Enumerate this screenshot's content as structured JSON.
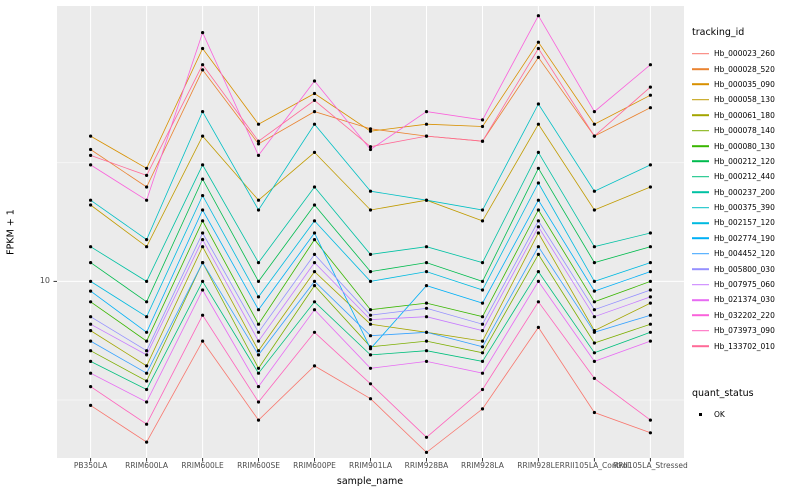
{
  "chart_data": {
    "type": "line",
    "title": "",
    "xlabel": "sample_name",
    "ylabel": "FPKM + 1",
    "y_scale": "log10",
    "ylim": [
      1.8,
      145
    ],
    "y_tick": {
      "value": 10,
      "label": "10"
    },
    "y_major_gridlines": [
      10
    ],
    "y_minor_gridlines": [
      3.162,
      31.62
    ],
    "grid_on": true,
    "legend_position": "right",
    "panel_bg": "#EBEBEB",
    "grid_color": "#FFFFFF",
    "point_color": "#000000",
    "point_shape": "circle",
    "categories": [
      "PB350LA",
      "RRIM600LA",
      "RRIM600LE",
      "RRIM600SE",
      "RRIM600PE",
      "RRIM901LA",
      "RRIM928BA",
      "RRIM928LA",
      "RRIM928LE",
      "RRII105LA_Control",
      "RRII105LA_Stressed"
    ],
    "series": [
      {
        "name": "Hb_000023_260",
        "color": "#F8766D",
        "values": [
          3.0,
          2.1,
          5.6,
          2.6,
          4.4,
          3.2,
          1.9,
          2.9,
          6.4,
          2.8,
          2.3
        ]
      },
      {
        "name": "Hb_000028_520",
        "color": "#EA8331",
        "values": [
          36,
          25,
          78,
          38,
          52,
          44,
          41,
          39,
          88,
          41,
          54
        ]
      },
      {
        "name": "Hb_000035_090",
        "color": "#D89000",
        "values": [
          41,
          30,
          96,
          46,
          62,
          43,
          46,
          45,
          102,
          46,
          61
        ]
      },
      {
        "name": "Hb_000058_130",
        "color": "#C09B00",
        "values": [
          21,
          14,
          41,
          22,
          35,
          20,
          22,
          18,
          46,
          20,
          25
        ]
      },
      {
        "name": "Hb_000061_180",
        "color": "#A3A500",
        "values": [
          6.2,
          4.4,
          14,
          5.1,
          11,
          6.6,
          6.1,
          5.6,
          16,
          6.2,
          8.1
        ]
      },
      {
        "name": "Hb_000078_140",
        "color": "#7CAE00",
        "values": [
          5.1,
          3.8,
          12,
          4.3,
          9.6,
          5.3,
          5.6,
          5.0,
          13,
          5.5,
          6.6
        ]
      },
      {
        "name": "Hb_000080_130",
        "color": "#39B600",
        "values": [
          8.2,
          5.6,
          18,
          6.6,
          15,
          7.6,
          8.1,
          7.1,
          20,
          8.2,
          10
        ]
      },
      {
        "name": "Hb_000212_120",
        "color": "#00BB4E",
        "values": [
          12,
          8.2,
          27,
          10,
          21,
          11,
          12,
          10,
          30,
          12,
          14
        ]
      },
      {
        "name": "Hb_000212_440",
        "color": "#00BF7D",
        "values": [
          4.6,
          3.5,
          10,
          4.1,
          8.2,
          4.9,
          5.1,
          4.6,
          11,
          5.0,
          6.1
        ]
      },
      {
        "name": "Hb_000237_200",
        "color": "#00C1A3",
        "values": [
          14,
          10,
          31,
          12,
          25,
          13,
          14,
          12,
          35,
          14,
          16
        ]
      },
      {
        "name": "Hb_000375_390",
        "color": "#00BFC4",
        "values": [
          22,
          15,
          52,
          20,
          46,
          24,
          22,
          20,
          56,
          24,
          31
        ]
      },
      {
        "name": "Hb_002157_120",
        "color": "#00BAE0",
        "values": [
          10,
          7.1,
          23,
          8.6,
          18,
          10,
          11,
          9.2,
          26,
          10,
          12
        ]
      },
      {
        "name": "Hb_002774_190",
        "color": "#00B0F6",
        "values": [
          9.1,
          6.1,
          20,
          7.6,
          16,
          5.2,
          9.6,
          8.1,
          22,
          9.1,
          11
        ]
      },
      {
        "name": "Hb_004452_120",
        "color": "#35A2FF",
        "values": [
          5.6,
          4.1,
          12,
          4.9,
          10,
          5.9,
          6.1,
          5.3,
          14,
          6.1,
          7.2
        ]
      },
      {
        "name": "Hb_005800_030",
        "color": "#9590FF",
        "values": [
          7.1,
          5.1,
          16,
          6.1,
          13,
          7.2,
          7.7,
          6.6,
          18,
          7.6,
          9.2
        ]
      },
      {
        "name": "Hb_007975_060",
        "color": "#C77CFF",
        "values": [
          6.6,
          4.9,
          15,
          5.6,
          12,
          6.9,
          7.1,
          6.2,
          17,
          7.1,
          8.6
        ]
      },
      {
        "name": "Hb_021374_030",
        "color": "#E76BF3",
        "values": [
          4.1,
          3.1,
          9.2,
          3.6,
          7.6,
          4.3,
          4.6,
          4.1,
          10,
          4.6,
          5.6
        ]
      },
      {
        "name": "Hb_032202_220",
        "color": "#FA62DB",
        "values": [
          31,
          22,
          112,
          34,
          70,
          36,
          52,
          48,
          132,
          52,
          82
        ]
      },
      {
        "name": "Hb_073973_090",
        "color": "#FF62BC",
        "values": [
          3.6,
          2.5,
          7.2,
          3.1,
          6.1,
          3.7,
          2.2,
          3.5,
          8.2,
          3.9,
          2.6
        ]
      },
      {
        "name": "Hb_133702_010",
        "color": "#FF6A98",
        "values": [
          34,
          28,
          82,
          39,
          58,
          37,
          41,
          39,
          96,
          41,
          66
        ]
      }
    ]
  },
  "legend": {
    "tracking_title": "tracking_id",
    "quant_title": "quant_status",
    "quant_value": "OK"
  }
}
